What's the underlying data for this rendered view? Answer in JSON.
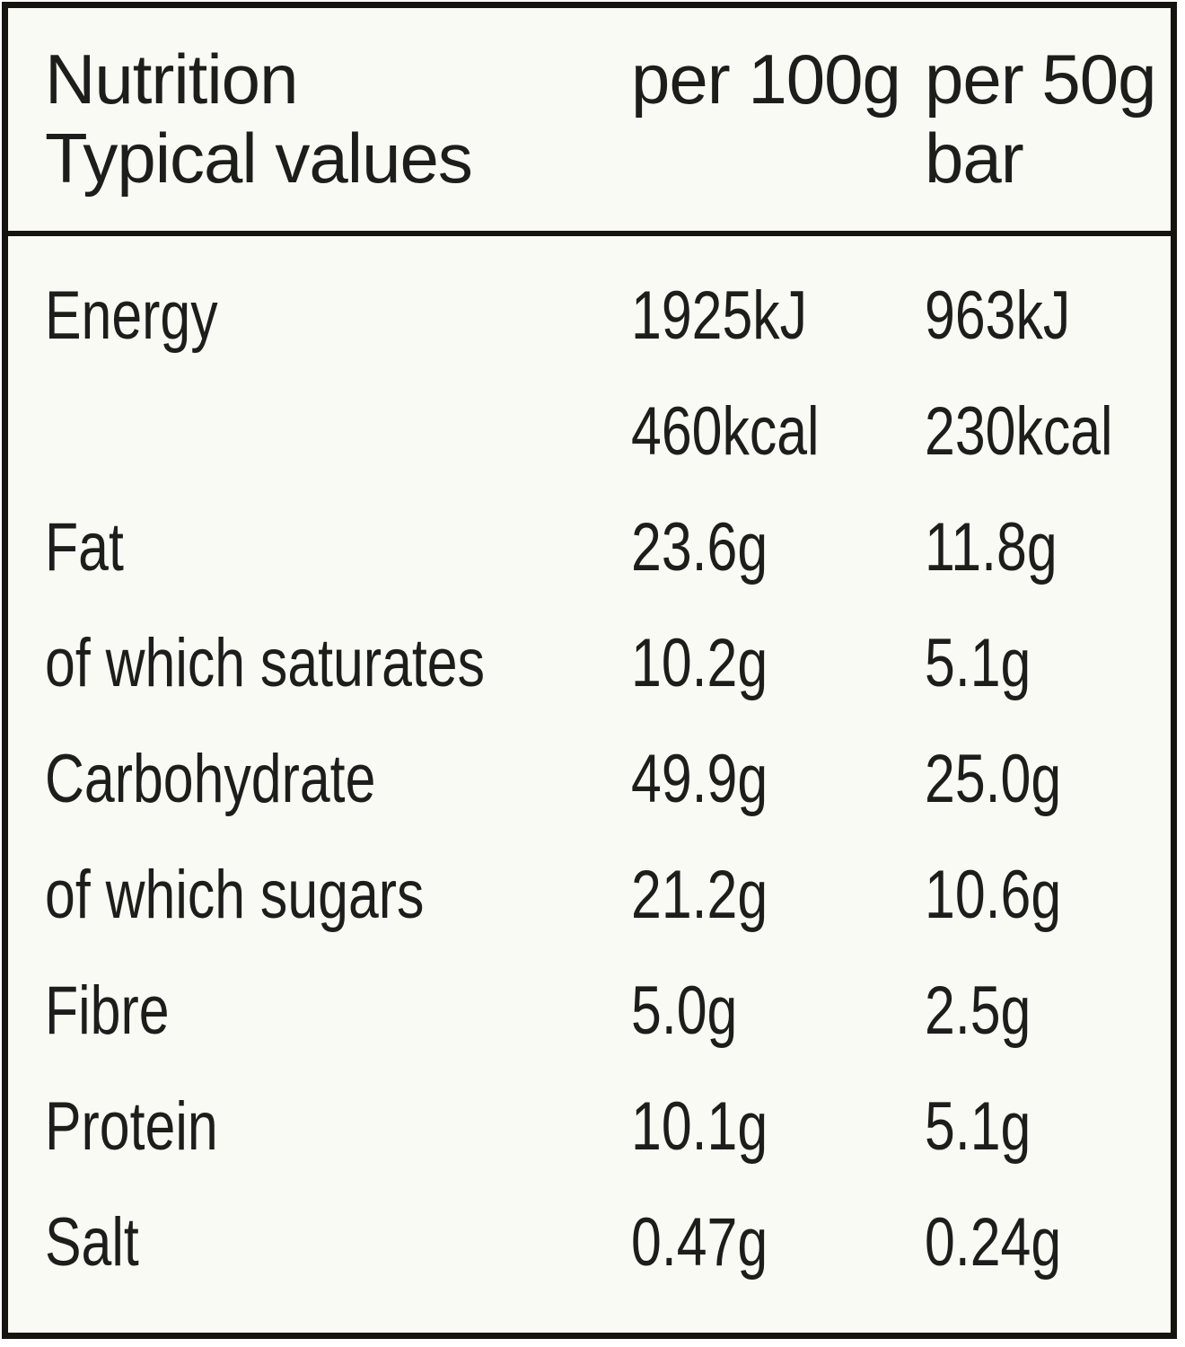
{
  "colors": {
    "label_background": "#fafaf4",
    "text": "#1d1d1b",
    "border": "#16140f",
    "page_background": "#ffffff"
  },
  "header": {
    "title_line1": "Nutrition",
    "title_line2": "Typical values",
    "col_per_100g": "per 100g",
    "col_per_50g_line1": "per 50g",
    "col_per_50g_line2": "bar"
  },
  "table": {
    "rows": [
      {
        "label": "Energy",
        "per_100g": "1925kJ",
        "per_50g": "963kJ"
      },
      {
        "label": "",
        "per_100g": "460kcal",
        "per_50g": "230kcal"
      },
      {
        "label": "Fat",
        "per_100g": "23.6g",
        "per_50g": "11.8g"
      },
      {
        "label": "of which saturates",
        "per_100g": "10.2g",
        "per_50g": "5.1g"
      },
      {
        "label": "Carbohydrate",
        "per_100g": "49.9g",
        "per_50g": "25.0g"
      },
      {
        "label": "of which sugars",
        "per_100g": "21.2g",
        "per_50g": "10.6g"
      },
      {
        "label": "Fibre",
        "per_100g": "5.0g",
        "per_50g": "2.5g"
      },
      {
        "label": "Protein",
        "per_100g": "10.1g",
        "per_50g": "5.1g"
      },
      {
        "label": "Salt",
        "per_100g": "0.47g",
        "per_50g": "0.24g"
      }
    ]
  }
}
